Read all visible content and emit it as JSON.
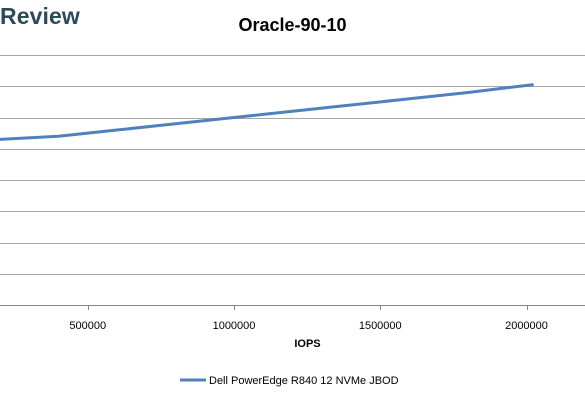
{
  "brand": {
    "text": "Review"
  },
  "chart_data": {
    "type": "line",
    "title": "Oracle-90-10",
    "xlabel": "IOPS",
    "ylabel": "",
    "xlim": [
      200000,
      2200000
    ],
    "x_ticks": [
      500000,
      1000000,
      1500000,
      2000000
    ],
    "x_tick_labels": [
      "500000",
      "1000000",
      "1500000",
      "2000000"
    ],
    "ylim": [
      0,
      8
    ],
    "grid": true,
    "legend_position": "bottom",
    "series": [
      {
        "name": "Dell PowerEdge R840 12 NVMe JBOD",
        "color": "#4f81bd",
        "x": [
          200000,
          400000,
          600000,
          800000,
          1000000,
          1200000,
          1400000,
          1600000,
          1800000,
          2020000
        ],
        "y": [
          5.3,
          5.4,
          5.6,
          5.8,
          6.0,
          6.2,
          6.4,
          6.6,
          6.8,
          7.05
        ]
      }
    ]
  }
}
